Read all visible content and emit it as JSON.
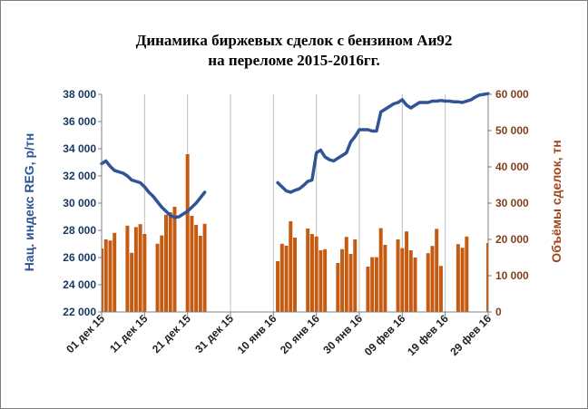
{
  "chart_data": {
    "type": "bar+line",
    "title_line1": "Динамика биржевых сделок с бензином Аи92",
    "title_line2": "на переломе 2015-2016гг.",
    "ylabel_left": "Нац. индекс REG, р/тн",
    "ylabel_right": "Объёмы сделок, тн",
    "ylim_left": [
      22000,
      38000
    ],
    "ylim_right": [
      0,
      60000
    ],
    "yticks_left": [
      "22 000",
      "24 000",
      "26 000",
      "28 000",
      "30 000",
      "32 000",
      "34 000",
      "36 000",
      "38 000"
    ],
    "yticks_right": [
      "0",
      "10 000",
      "20 000",
      "30 000",
      "40 000",
      "50 000",
      "60 000"
    ],
    "xlim_days": [
      0,
      90
    ],
    "x_ticks": [
      {
        "day": 0,
        "label": "01 дек 15"
      },
      {
        "day": 10,
        "label": "11 дек 15"
      },
      {
        "day": 20,
        "label": "21 дек 15"
      },
      {
        "day": 30,
        "label": "31 дек 15"
      },
      {
        "day": 40,
        "label": "10 янв 16"
      },
      {
        "day": 50,
        "label": "20 янв 16"
      },
      {
        "day": 60,
        "label": "30 янв 16"
      },
      {
        "day": 70,
        "label": "09 фев 16"
      },
      {
        "day": 80,
        "label": "19 фев 16"
      },
      {
        "day": 90,
        "label": "29 фев 16"
      }
    ],
    "colors": {
      "volume_bars": "#c55a11",
      "index_line": "#2f5597"
    },
    "volume_series": [
      [
        0,
        17500
      ],
      [
        1,
        20000
      ],
      [
        2,
        19700
      ],
      [
        3,
        21800
      ],
      [
        6,
        23800
      ],
      [
        7,
        16300
      ],
      [
        8,
        23400
      ],
      [
        9,
        24200
      ],
      [
        10,
        21500
      ],
      [
        13,
        18800
      ],
      [
        14,
        21100
      ],
      [
        15,
        26800
      ],
      [
        16,
        27500
      ],
      [
        17,
        29000
      ],
      [
        20,
        43500
      ],
      [
        21,
        26500
      ],
      [
        22,
        24000
      ],
      [
        23,
        21000
      ],
      [
        24,
        24300
      ],
      [
        41,
        14000
      ],
      [
        42,
        18800
      ],
      [
        43,
        18300
      ],
      [
        44,
        25000
      ],
      [
        45,
        20500
      ],
      [
        48,
        23000
      ],
      [
        49,
        21500
      ],
      [
        50,
        20800
      ],
      [
        51,
        17000
      ],
      [
        52,
        17300
      ],
      [
        55,
        13500
      ],
      [
        56,
        17300
      ],
      [
        57,
        20700
      ],
      [
        58,
        16000
      ],
      [
        59,
        20000
      ],
      [
        62,
        12500
      ],
      [
        63,
        15100
      ],
      [
        64,
        15100
      ],
      [
        65,
        23100
      ],
      [
        66,
        18500
      ],
      [
        69,
        20000
      ],
      [
        70,
        17600
      ],
      [
        71,
        22200
      ],
      [
        72,
        17000
      ],
      [
        73,
        15000
      ],
      [
        76,
        16200
      ],
      [
        77,
        18200
      ],
      [
        78,
        22900
      ],
      [
        79,
        12700
      ],
      [
        83,
        18700
      ],
      [
        84,
        17700
      ],
      [
        85,
        20800
      ],
      [
        90,
        19000
      ]
    ],
    "index_series": [
      [
        0,
        32900
      ],
      [
        1,
        33100
      ],
      [
        2,
        32700
      ],
      [
        3,
        32400
      ],
      [
        4,
        32300
      ],
      [
        5,
        32200
      ],
      [
        6,
        32000
      ],
      [
        7,
        31700
      ],
      [
        8,
        31600
      ],
      [
        9,
        31500
      ],
      [
        10,
        31200
      ],
      [
        11,
        30800
      ],
      [
        12,
        30500
      ],
      [
        13,
        30100
      ],
      [
        14,
        29700
      ],
      [
        15,
        29400
      ],
      [
        16,
        29100
      ],
      [
        17,
        28950
      ],
      [
        18,
        29000
      ],
      [
        19,
        29200
      ],
      [
        20,
        29400
      ],
      [
        21,
        29700
      ],
      [
        22,
        30000
      ],
      [
        23,
        30400
      ],
      [
        24,
        30800
      ],
      [
        41,
        31500
      ],
      [
        42,
        31200
      ],
      [
        43,
        30900
      ],
      [
        44,
        30800
      ],
      [
        45,
        30950
      ],
      [
        46,
        31050
      ],
      [
        47,
        31300
      ],
      [
        48,
        31600
      ],
      [
        49,
        31700
      ],
      [
        50,
        33700
      ],
      [
        51,
        33900
      ],
      [
        52,
        33400
      ],
      [
        53,
        33200
      ],
      [
        54,
        33100
      ],
      [
        55,
        33300
      ],
      [
        56,
        33500
      ],
      [
        57,
        33700
      ],
      [
        58,
        34500
      ],
      [
        59,
        34900
      ],
      [
        60,
        35400
      ],
      [
        61,
        35400
      ],
      [
        62,
        35400
      ],
      [
        63,
        35300
      ],
      [
        64,
        35300
      ],
      [
        65,
        36700
      ],
      [
        66,
        36900
      ],
      [
        67,
        37100
      ],
      [
        68,
        37300
      ],
      [
        69,
        37400
      ],
      [
        70,
        37600
      ],
      [
        71,
        37200
      ],
      [
        72,
        37000
      ],
      [
        73,
        37200
      ],
      [
        74,
        37400
      ],
      [
        75,
        37400
      ],
      [
        76,
        37400
      ],
      [
        77,
        37500
      ],
      [
        78,
        37500
      ],
      [
        79,
        37550
      ],
      [
        80,
        37500
      ],
      [
        81,
        37500
      ],
      [
        82,
        37450
      ],
      [
        83,
        37450
      ],
      [
        84,
        37400
      ],
      [
        85,
        37500
      ],
      [
        86,
        37600
      ],
      [
        87,
        37800
      ],
      [
        88,
        37950
      ],
      [
        89,
        38000
      ],
      [
        90,
        38050
      ]
    ]
  }
}
